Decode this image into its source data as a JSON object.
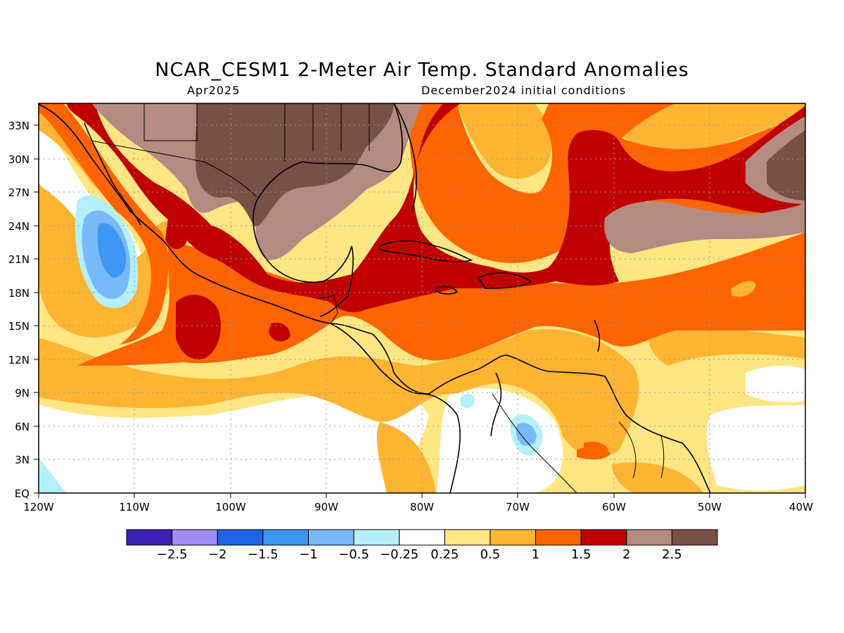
{
  "title": "NCAR_CESM1 2-Meter Air Temp. Standard Anomalies",
  "subtitle_left": "Apr2025",
  "subtitle_right": "December2024 initial conditions",
  "map": {
    "lon_range": [
      -120,
      -40
    ],
    "lat_range": [
      0,
      35
    ],
    "lat_ticks": [
      "33N",
      "30N",
      "27N",
      "24N",
      "21N",
      "18N",
      "15N",
      "12N",
      "9N",
      "6N",
      "3N",
      "EQ"
    ],
    "lon_ticks": [
      "120W",
      "110W",
      "100W",
      "90W",
      "80W",
      "70W",
      "60W",
      "50W",
      "40W"
    ],
    "grid": true
  },
  "colorbar": {
    "colors": [
      "#3a20b4",
      "#a18cf5",
      "#1e64e6",
      "#3c96f5",
      "#78b9fa",
      "#b4f0fa",
      "#ffffff",
      "#ffe682",
      "#ffb432",
      "#ff6400",
      "#c00000",
      "#b48a82",
      "#785046"
    ],
    "labels": [
      "-2.5",
      "-2",
      "-1.5",
      "-1",
      "-0.5",
      "-0.25",
      "0.25",
      "0.5",
      "1",
      "1.5",
      "2",
      "2.5"
    ]
  }
}
